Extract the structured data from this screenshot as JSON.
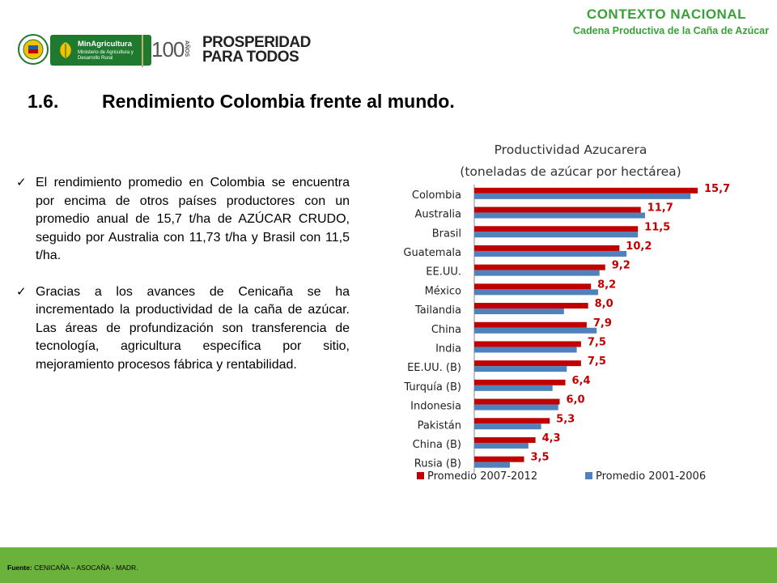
{
  "header": {
    "title": "CONTEXTO NACIONAL",
    "subtitle": "Cadena Productiva de la Caña de Azúcar"
  },
  "logos": {
    "ministry_name": "MinAgricultura",
    "ministry_desc": "Ministerio de Agricultura y Desarrollo Rural",
    "centenary": "100",
    "centenary_suffix": "AÑOS",
    "slogan_line1": "PROSPERIDAD",
    "slogan_line2": "PARA TODOS"
  },
  "section": {
    "number": "1.6.",
    "title": "Rendimiento Colombia frente al mundo."
  },
  "bullets": [
    "El rendimiento promedio en Colombia se encuentra por encima de otros países productores con un promedio anual de 15,7 t/ha de AZÚCAR CRUDO, seguido por Australia con 11,73 t/ha y Brasil con 11,5 t/ha.",
    "Gracias a los avances de Cenicaña se ha incrementado la productividad de la caña de azúcar. Las áreas de profundización son transferencia de tecnología, agricultura específica por sitio, mejoramiento procesos fábrica y rentabilidad."
  ],
  "footer": {
    "label": "Fuente:",
    "text": "CENICAÑA – ASOCAÑA - MADR."
  },
  "colors": {
    "accent_green": "#3aa03a",
    "footer_green": "#6ab23c",
    "series_recent": "#c00000",
    "series_old": "#4f81bd"
  },
  "chart_data": {
    "type": "bar",
    "orientation": "horizontal",
    "title": "Productividad Azucarera",
    "subtitle": "(toneladas de azúcar por hectárea)",
    "categories": [
      "Colombia",
      "Australia",
      "Brasil",
      "Guatemala",
      "EE.UU.",
      "México",
      "Tailandia",
      "China",
      "India",
      "EE.UU. (B)",
      "Turquía (B)",
      "Indonesia",
      "Pakistán",
      "China (B)",
      "Rusia (B)"
    ],
    "series": [
      {
        "name": "Promedio 2007-2012",
        "color": "#c00000",
        "values": [
          15.7,
          11.7,
          11.5,
          10.2,
          9.2,
          8.2,
          8.0,
          7.9,
          7.5,
          7.5,
          6.4,
          6.0,
          5.3,
          4.3,
          3.5
        ],
        "labels": [
          "15,7",
          "11,7",
          "11,5",
          "10,2",
          "9,2",
          "8,2",
          "8,0",
          "7,9",
          "7,5",
          "7,5",
          "6,4",
          "6,0",
          "5,3",
          "4,3",
          "3,5"
        ]
      },
      {
        "name": "Promedio 2001-2006",
        "color": "#4f81bd",
        "values": [
          15.2,
          12.0,
          11.5,
          10.7,
          8.8,
          8.7,
          6.3,
          8.6,
          7.2,
          6.5,
          5.5,
          5.9,
          4.7,
          3.8,
          2.5
        ]
      }
    ],
    "xlim": [
      0,
      18
    ],
    "legend_position": "bottom",
    "grid": false
  }
}
